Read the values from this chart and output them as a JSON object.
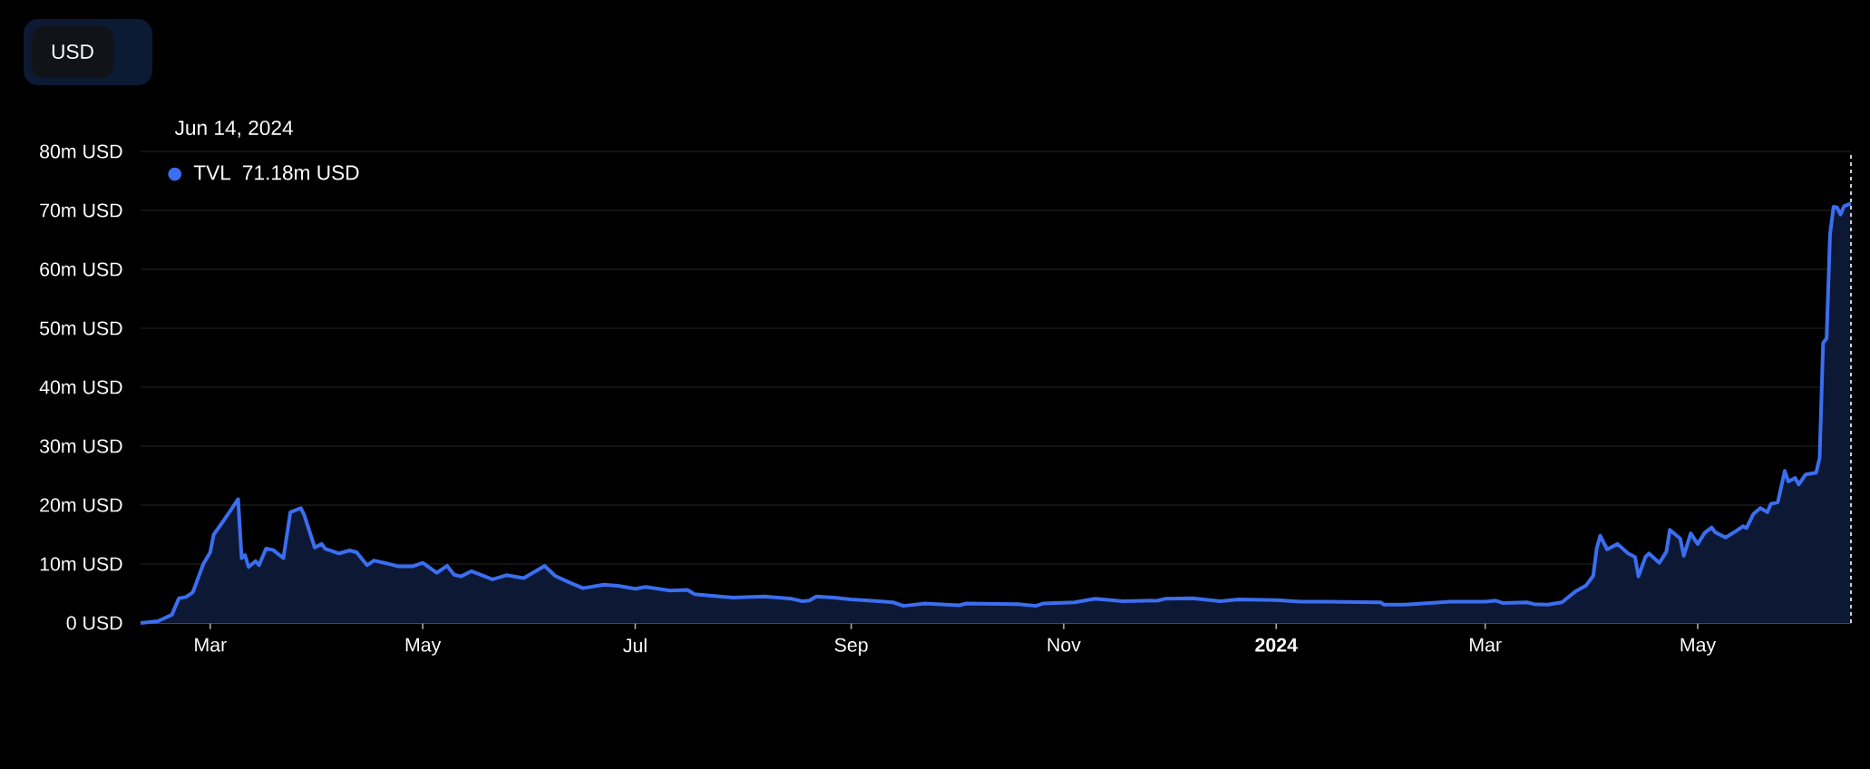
{
  "chart_data": {
    "type": "area",
    "x": [
      "2023-02-09",
      "2023-02-14",
      "2023-02-18",
      "2023-02-20",
      "2023-02-22",
      "2023-02-24",
      "2023-02-27",
      "2023-03-01",
      "2023-03-02",
      "2023-03-05",
      "2023-03-09",
      "2023-03-10",
      "2023-03-11",
      "2023-03-12",
      "2023-03-14",
      "2023-03-15",
      "2023-03-17",
      "2023-03-19",
      "2023-03-22",
      "2023-03-24",
      "2023-03-27",
      "2023-03-28",
      "2023-03-31",
      "2023-04-02",
      "2023-04-03",
      "2023-04-07",
      "2023-04-10",
      "2023-04-12",
      "2023-04-15",
      "2023-04-17",
      "2023-04-20",
      "2023-04-24",
      "2023-04-28",
      "2023-05-01",
      "2023-05-05",
      "2023-05-08",
      "2023-05-10",
      "2023-05-12",
      "2023-05-15",
      "2023-05-21",
      "2023-05-25",
      "2023-05-30",
      "2023-06-05",
      "2023-06-08",
      "2023-06-12",
      "2023-06-16",
      "2023-06-22",
      "2023-06-26",
      "2023-07-01",
      "2023-07-04",
      "2023-07-11",
      "2023-07-16",
      "2023-07-18",
      "2023-07-23",
      "2023-07-29",
      "2023-08-07",
      "2023-08-15",
      "2023-08-18",
      "2023-08-20",
      "2023-08-22",
      "2023-08-27",
      "2023-09-01",
      "2023-09-09",
      "2023-09-13",
      "2023-09-16",
      "2023-09-22",
      "2023-10-02",
      "2023-10-04",
      "2023-10-19",
      "2023-10-24",
      "2023-10-26",
      "2023-11-04",
      "2023-11-10",
      "2023-11-18",
      "2023-11-28",
      "2023-11-30",
      "2023-12-08",
      "2023-12-16",
      "2023-12-21",
      "2024-01-01",
      "2024-01-08",
      "2024-01-15",
      "2024-01-31",
      "2024-02-01",
      "2024-02-07",
      "2024-02-20",
      "2024-03-01",
      "2024-03-04",
      "2024-03-06",
      "2024-03-13",
      "2024-03-15",
      "2024-03-19",
      "2024-03-23",
      "2024-03-27",
      "2024-03-30",
      "2024-04-01",
      "2024-04-02",
      "2024-04-03",
      "2024-04-05",
      "2024-04-08",
      "2024-04-11",
      "2024-04-13",
      "2024-04-14",
      "2024-04-16",
      "2024-04-17",
      "2024-04-20",
      "2024-04-22",
      "2024-04-23",
      "2024-04-26",
      "2024-04-27",
      "2024-04-29",
      "2024-05-01",
      "2024-05-03",
      "2024-05-05",
      "2024-05-06",
      "2024-05-09",
      "2024-05-12",
      "2024-05-14",
      "2024-05-15",
      "2024-05-17",
      "2024-05-19",
      "2024-05-21",
      "2024-05-22",
      "2024-05-24",
      "2024-05-26",
      "2024-05-27",
      "2024-05-29",
      "2024-05-30",
      "2024-06-01",
      "2024-06-04",
      "2024-06-05",
      "2024-06-06",
      "2024-06-07",
      "2024-06-08",
      "2024-06-09",
      "2024-06-10",
      "2024-06-11",
      "2024-06-12",
      "2024-06-14"
    ],
    "series": [
      {
        "name": "TVL",
        "color": "#3b6ef0",
        "values": [
          0,
          0.3,
          1.4,
          4.2,
          4.4,
          5.2,
          10,
          12,
          15,
          17.5,
          21,
          11,
          11.5,
          9.5,
          10.5,
          9.8,
          12.6,
          12.4,
          11,
          18.8,
          19.5,
          18.3,
          12.8,
          13.4,
          12.6,
          11.8,
          12.3,
          12,
          9.8,
          10.6,
          10.2,
          9.6,
          9.6,
          10.2,
          8.5,
          9.7,
          8.2,
          7.9,
          8.8,
          7.4,
          8.1,
          7.6,
          9.7,
          8,
          6.9,
          5.9,
          6.5,
          6.3,
          5.8,
          6.1,
          5.5,
          5.6,
          4.9,
          4.6,
          4.3,
          4.5,
          4.1,
          3.7,
          3.8,
          4.5,
          4.3,
          4,
          3.7,
          3.5,
          2.9,
          3.3,
          3,
          3.3,
          3.2,
          2.9,
          3.3,
          3.5,
          4.1,
          3.7,
          3.8,
          4.1,
          4.2,
          3.7,
          4,
          3.9,
          3.6,
          3.6,
          3.5,
          3.1,
          3.1,
          3.6,
          3.6,
          3.8,
          3.4,
          3.5,
          3.2,
          3.1,
          3.5,
          5.4,
          6.4,
          8,
          12.6,
          14.8,
          12.5,
          13.4,
          11.8,
          11.2,
          7.9,
          11.2,
          11.8,
          10.2,
          12.1,
          15.8,
          14.3,
          11.4,
          15.2,
          13.4,
          15.3,
          16.2,
          15.4,
          14.5,
          15.6,
          16.4,
          16.1,
          18.5,
          19.5,
          18.8,
          20.2,
          20.5,
          25.8,
          24,
          24.6,
          23.5,
          25.2,
          25.5,
          28,
          47.5,
          48.3,
          66,
          70.6,
          70.5,
          69.3,
          70.7,
          71.18
        ]
      }
    ],
    "xlim": [
      "2023-02-09",
      "2024-06-14"
    ],
    "xticks": [
      {
        "value": "2023-03-01",
        "label": "Mar"
      },
      {
        "value": "2023-05-01",
        "label": "May"
      },
      {
        "value": "2023-07-01",
        "label": "Jul"
      },
      {
        "value": "2023-09-01",
        "label": "Sep"
      },
      {
        "value": "2023-11-01",
        "label": "Nov"
      },
      {
        "value": "2024-01-01",
        "label": "**2024**"
      },
      {
        "value": "2024-03-01",
        "label": "Mar"
      },
      {
        "value": "2024-05-01",
        "label": "May"
      }
    ],
    "ylim": [
      0,
      80
    ],
    "yticks": [
      {
        "value": 0,
        "label": "0 USD"
      },
      {
        "value": 10,
        "label": "10m USD"
      },
      {
        "value": 20,
        "label": "20m USD"
      },
      {
        "value": 30,
        "label": "30m USD"
      },
      {
        "value": 40,
        "label": "40m USD"
      },
      {
        "value": 50,
        "label": "50m USD"
      },
      {
        "value": 60,
        "label": "60m USD"
      },
      {
        "value": 70,
        "label": "70m USD"
      },
      {
        "value": 80,
        "label": "80m USD"
      }
    ],
    "grid": "y",
    "legend": "top left",
    "ref_lines": [
      {
        "axis": "x",
        "value": "2024-06-14",
        "color": "#ffffff",
        "line_style": "dashed"
      }
    ],
    "annotations": [
      "Jun 14, 2024",
      "71.18m USD",
      "USD"
    ]
  }
}
